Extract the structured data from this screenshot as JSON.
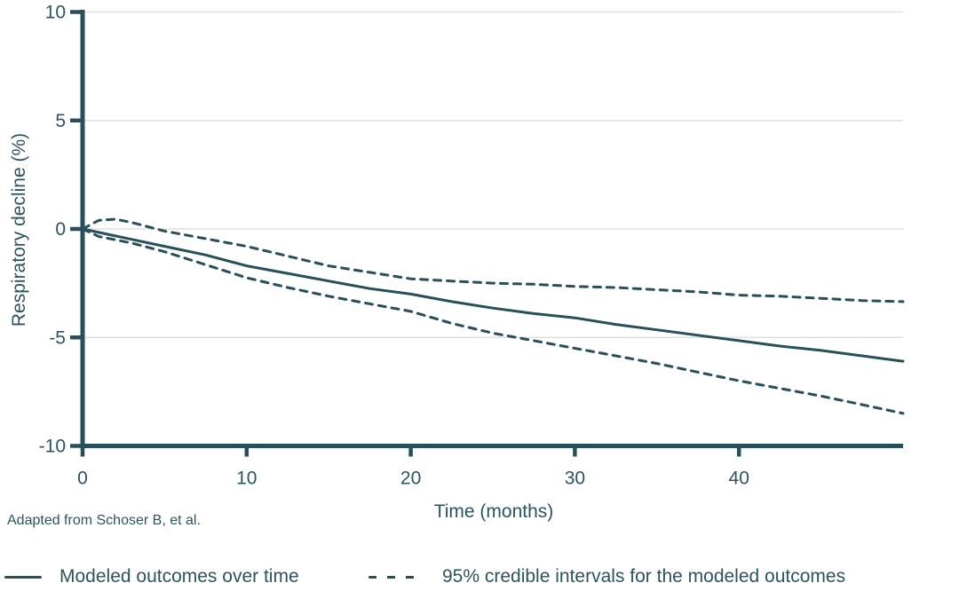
{
  "colors": {
    "line": "#27505b",
    "text": "#2c5460",
    "grid": "#e0e0e0",
    "background": "#ffffff"
  },
  "footnote": "Adapted from Schoser B, et al.",
  "legend": {
    "items": [
      {
        "label": "Modeled outcomes over time",
        "swatch": "solid-line"
      },
      {
        "label": "95% credible intervals for the modeled outcomes",
        "swatch": "dashed-line"
      }
    ]
  },
  "chart_data": {
    "type": "line",
    "title": "",
    "xlabel": "Time (months)",
    "ylabel": "Respiratory decline (%)",
    "xlim": [
      0,
      50
    ],
    "ylim": [
      -10,
      10
    ],
    "x_ticks": [
      0,
      10,
      20,
      30,
      40
    ],
    "y_ticks": [
      10,
      5,
      0,
      -5,
      -10
    ],
    "gridline_values": [
      10,
      5,
      0,
      -5
    ],
    "grid": "horizontal-only",
    "legend_position": "bottom",
    "series": [
      {
        "name": "Modeled outcomes over time",
        "style": "solid",
        "x": [
          0,
          2.5,
          5,
          7.5,
          10,
          12.5,
          15,
          17.5,
          20,
          22.5,
          25,
          27.5,
          30,
          32.5,
          35,
          37.5,
          40,
          42.5,
          45,
          47.5,
          50
        ],
        "y": [
          0,
          -0.4,
          -0.8,
          -1.2,
          -1.7,
          -2.05,
          -2.4,
          -2.75,
          -3.0,
          -3.35,
          -3.65,
          -3.9,
          -4.1,
          -4.4,
          -4.65,
          -4.9,
          -5.15,
          -5.4,
          -5.6,
          -5.85,
          -6.1
        ]
      },
      {
        "name": "95% credible interval (upper)",
        "style": "dashed",
        "x": [
          0,
          1,
          2,
          3,
          4,
          5,
          7.5,
          10,
          12.5,
          15,
          17.5,
          20,
          22.5,
          25,
          27.5,
          30,
          32.5,
          35,
          37.5,
          40,
          42.5,
          45,
          47.5,
          50
        ],
        "y": [
          0,
          0.4,
          0.45,
          0.3,
          0.1,
          -0.1,
          -0.45,
          -0.8,
          -1.25,
          -1.7,
          -2.0,
          -2.3,
          -2.4,
          -2.5,
          -2.55,
          -2.65,
          -2.7,
          -2.8,
          -2.9,
          -3.05,
          -3.1,
          -3.2,
          -3.3,
          -3.35
        ]
      },
      {
        "name": "95% credible interval (lower)",
        "style": "dashed",
        "x": [
          0,
          1,
          2,
          3,
          5,
          7.5,
          10,
          12.5,
          15,
          17.5,
          20,
          22.5,
          25,
          27.5,
          30,
          32.5,
          35,
          37.5,
          40,
          42.5,
          45,
          47.5,
          50
        ],
        "y": [
          0,
          -0.35,
          -0.5,
          -0.65,
          -1.05,
          -1.65,
          -2.25,
          -2.7,
          -3.1,
          -3.45,
          -3.8,
          -4.35,
          -4.8,
          -5.15,
          -5.5,
          -5.85,
          -6.2,
          -6.6,
          -7.0,
          -7.35,
          -7.7,
          -8.1,
          -8.5
        ]
      }
    ]
  }
}
